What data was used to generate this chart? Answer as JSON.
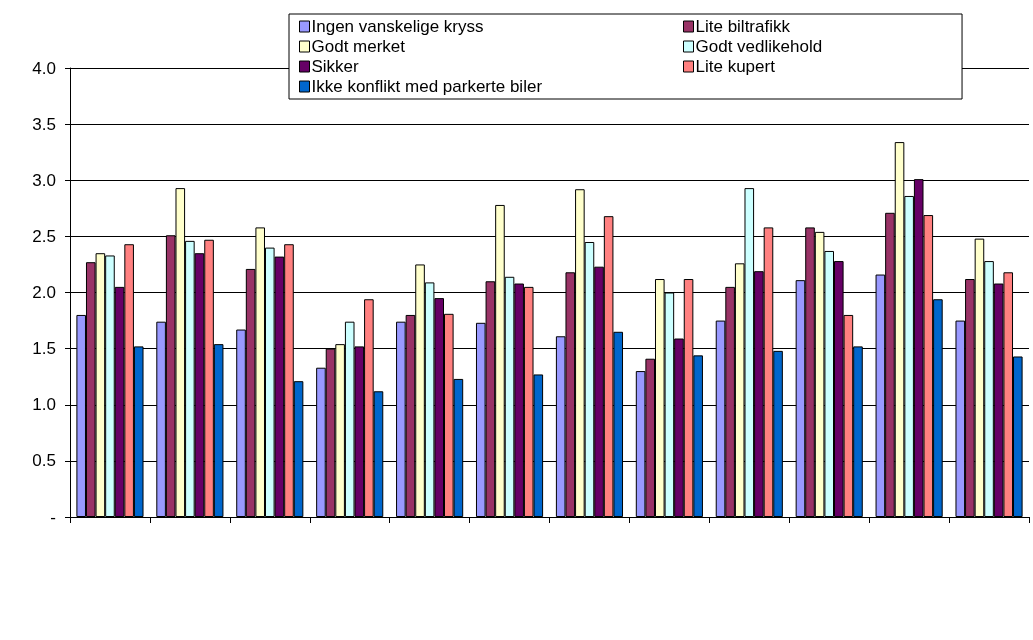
{
  "chart_data": {
    "type": "bar",
    "categories": [
      null,
      null,
      null,
      null,
      null,
      null,
      null,
      null,
      null,
      null,
      null,
      null
    ],
    "series": [
      {
        "name": "Ingen vanskelige kryss",
        "color": "#9999ff",
        "values": [
          1.8,
          1.74,
          1.67,
          1.33,
          1.74,
          1.73,
          1.61,
          1.3,
          1.75,
          2.11,
          2.16,
          1.75
        ]
      },
      {
        "name": "Lite biltrafikk",
        "color": "#993366",
        "values": [
          2.27,
          2.51,
          2.21,
          1.5,
          1.8,
          2.1,
          2.18,
          1.41,
          2.05,
          2.58,
          2.71,
          2.12
        ]
      },
      {
        "name": "Godt merket",
        "color": "#ffffcc",
        "values": [
          2.35,
          2.93,
          2.58,
          1.54,
          2.25,
          2.78,
          2.92,
          2.12,
          2.26,
          2.54,
          3.34,
          2.48
        ]
      },
      {
        "name": "Godt vedlikehold",
        "color": "#ccffff",
        "values": [
          2.33,
          2.46,
          2.4,
          1.74,
          2.09,
          2.14,
          2.45,
          2.0,
          2.93,
          2.37,
          2.86,
          2.28
        ]
      },
      {
        "name": "Sikker",
        "color": "#660066",
        "values": [
          2.05,
          2.35,
          2.32,
          1.52,
          1.95,
          2.08,
          2.23,
          1.59,
          2.19,
          2.28,
          3.01,
          2.08
        ]
      },
      {
        "name": "Lite kupert",
        "color": "#ff8080",
        "values": [
          2.43,
          2.47,
          2.43,
          1.94,
          1.81,
          2.05,
          2.68,
          2.12,
          2.58,
          1.8,
          2.69,
          2.18
        ]
      },
      {
        "name": "Ikke konflikt med parkerte biler",
        "color": "#0066cc",
        "values": [
          1.52,
          1.54,
          1.21,
          1.12,
          1.23,
          1.27,
          1.65,
          1.44,
          1.48,
          1.52,
          1.94,
          1.43
        ]
      }
    ],
    "ylim": [
      0,
      4.0
    ],
    "yticks": [
      {
        "value": 0,
        "label": "-"
      },
      {
        "value": 0.5,
        "label": "0.5"
      },
      {
        "value": 1.0,
        "label": "1.0"
      },
      {
        "value": 1.5,
        "label": "1.5"
      },
      {
        "value": 2.0,
        "label": "2.0"
      },
      {
        "value": 2.5,
        "label": "2.5"
      },
      {
        "value": 3.0,
        "label": "3.0"
      },
      {
        "value": 3.5,
        "label": "3.5"
      },
      {
        "value": 4.0,
        "label": "4.0"
      }
    ],
    "grid": "y",
    "legend": "top right"
  }
}
